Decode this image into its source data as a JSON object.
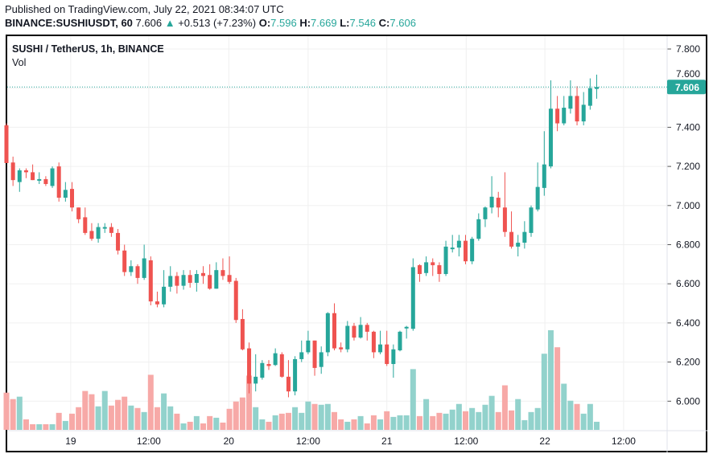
{
  "header": {
    "published": "Published on TradingView.com, July 22, 2021 08:34:07 UTC",
    "symbol": "BINANCE:SUSHIUSDT, 60",
    "last": "7.606",
    "change": "+0.513 (+7.23%)",
    "o_label": "O:",
    "o": "7.596",
    "h_label": "H:",
    "h": "7.669",
    "l_label": "L:",
    "l": "7.546",
    "c_label": "C:",
    "c": "7.606"
  },
  "legend": {
    "title": "SUSHI / TetherUS, 1h, BINANCE",
    "vol": "Vol"
  },
  "colors": {
    "up": "#26a69a",
    "down": "#ef5350",
    "up_vol": "#92d2cc",
    "down_vol": "#f7a9a7",
    "grid": "#f0f0f0"
  },
  "chart_data": {
    "type": "candlestick",
    "title": "SUSHI / TetherUS, 1h, BINANCE",
    "ylim": [
      5.85,
      7.87
    ],
    "y_ticks": [
      "7.800",
      "7.600",
      "7.400",
      "7.200",
      "7.000",
      "6.800",
      "6.600",
      "6.400",
      "6.200",
      "6.000"
    ],
    "y_tick_values": [
      7.8,
      7.6,
      7.4,
      7.2,
      7.0,
      6.8,
      6.6,
      6.4,
      6.2,
      6.0
    ],
    "x_ticks": [
      "19",
      "12:00",
      "20",
      "12:00",
      "21",
      "12:00",
      "22",
      "12:00"
    ],
    "x_tick_candle_index": [
      9.8,
      21.7,
      33.9,
      46.0,
      58.0,
      70.1,
      82.1,
      94.1
    ],
    "last_price_label": "7.606",
    "last_price": 7.606,
    "ohlc": [
      [
        7.41,
        7.42,
        7.22,
        7.217
      ],
      [
        7.22,
        7.25,
        7.1,
        7.13
      ],
      [
        7.12,
        7.19,
        7.07,
        7.18
      ],
      [
        7.18,
        7.19,
        7.14,
        7.17
      ],
      [
        7.17,
        7.21,
        7.13,
        7.13
      ],
      [
        7.135,
        7.17,
        7.11,
        7.135
      ],
      [
        7.135,
        7.15,
        7.1,
        7.11
      ],
      [
        7.1,
        7.2,
        7.09,
        7.19
      ],
      [
        7.2,
        7.22,
        7.02,
        7.04
      ],
      [
        7.04,
        7.12,
        7.02,
        7.08
      ],
      [
        7.085,
        7.12,
        6.97,
        6.99
      ],
      [
        6.99,
        6.99,
        6.91,
        6.93
      ],
      [
        6.94,
        6.99,
        6.85,
        6.86
      ],
      [
        6.87,
        6.91,
        6.82,
        6.83
      ],
      [
        6.83,
        6.91,
        6.81,
        6.89
      ],
      [
        6.885,
        6.91,
        6.86,
        6.89
      ],
      [
        6.89,
        6.91,
        6.84,
        6.86
      ],
      [
        6.86,
        6.88,
        6.75,
        6.77
      ],
      [
        6.77,
        6.8,
        6.64,
        6.66
      ],
      [
        6.66,
        6.72,
        6.64,
        6.69
      ],
      [
        6.69,
        6.7,
        6.6,
        6.63
      ],
      [
        6.63,
        6.8,
        6.62,
        6.73
      ],
      [
        6.72,
        6.74,
        6.49,
        6.51
      ],
      [
        6.51,
        6.56,
        6.48,
        6.495
      ],
      [
        6.495,
        6.67,
        6.48,
        6.585
      ],
      [
        6.585,
        6.69,
        6.56,
        6.64
      ],
      [
        6.64,
        6.66,
        6.55,
        6.59
      ],
      [
        6.59,
        6.67,
        6.57,
        6.645
      ],
      [
        6.645,
        6.67,
        6.58,
        6.605
      ],
      [
        6.605,
        6.67,
        6.56,
        6.65
      ],
      [
        6.655,
        6.69,
        6.6,
        6.64
      ],
      [
        6.645,
        6.7,
        6.57,
        6.575
      ],
      [
        6.575,
        6.71,
        6.575,
        6.67
      ],
      [
        6.67,
        6.73,
        6.62,
        6.64
      ],
      [
        6.645,
        6.74,
        6.6,
        6.61
      ],
      [
        6.615,
        6.63,
        6.4,
        6.415
      ],
      [
        6.42,
        6.47,
        6.26,
        6.265
      ],
      [
        6.27,
        6.3,
        6.04,
        6.09
      ],
      [
        6.09,
        6.24,
        6.05,
        6.125
      ],
      [
        6.12,
        6.21,
        6.11,
        6.195
      ],
      [
        6.19,
        6.21,
        6.16,
        6.18
      ],
      [
        6.185,
        6.27,
        6.18,
        6.245
      ],
      [
        6.24,
        6.25,
        6.12,
        6.125
      ],
      [
        6.125,
        6.21,
        6.02,
        6.05
      ],
      [
        6.05,
        6.23,
        6.03,
        6.215
      ],
      [
        6.215,
        6.31,
        6.2,
        6.25
      ],
      [
        6.25,
        6.36,
        6.24,
        6.31
      ],
      [
        6.31,
        6.31,
        6.13,
        6.17
      ],
      [
        6.175,
        6.28,
        6.14,
        6.25
      ],
      [
        6.25,
        6.455,
        6.23,
        6.45
      ],
      [
        6.45,
        6.5,
        6.26,
        6.27
      ],
      [
        6.275,
        6.3,
        6.25,
        6.265
      ],
      [
        6.265,
        6.41,
        6.25,
        6.385
      ],
      [
        6.385,
        6.4,
        6.31,
        6.325
      ],
      [
        6.325,
        6.43,
        6.32,
        6.39
      ],
      [
        6.39,
        6.4,
        6.31,
        6.355
      ],
      [
        6.355,
        6.36,
        6.22,
        6.25
      ],
      [
        6.25,
        6.36,
        6.24,
        6.29
      ],
      [
        6.29,
        6.36,
        6.18,
        6.19
      ],
      [
        6.19,
        6.29,
        6.12,
        6.265
      ],
      [
        6.26,
        6.36,
        6.255,
        6.355
      ],
      [
        6.375,
        6.385,
        6.32,
        6.38
      ],
      [
        6.37,
        6.73,
        6.36,
        6.685
      ],
      [
        6.695,
        6.7,
        6.61,
        6.65
      ],
      [
        6.655,
        6.74,
        6.64,
        6.71
      ],
      [
        6.71,
        6.73,
        6.64,
        6.695
      ],
      [
        6.695,
        6.71,
        6.61,
        6.65
      ],
      [
        6.65,
        6.82,
        6.64,
        6.79
      ],
      [
        6.785,
        6.85,
        6.76,
        6.785
      ],
      [
        6.785,
        6.85,
        6.74,
        6.82
      ],
      [
        6.82,
        6.85,
        6.7,
        6.715
      ],
      [
        6.715,
        6.84,
        6.7,
        6.83
      ],
      [
        6.83,
        6.96,
        6.82,
        6.93
      ],
      [
        6.93,
        6.995,
        6.89,
        6.99
      ],
      [
        6.99,
        7.15,
        6.96,
        7.045
      ],
      [
        7.04,
        7.07,
        6.94,
        6.99
      ],
      [
        6.99,
        7.17,
        6.84,
        6.865
      ],
      [
        6.865,
        6.97,
        6.78,
        6.79
      ],
      [
        6.79,
        6.85,
        6.74,
        6.81
      ],
      [
        6.81,
        6.92,
        6.78,
        6.865
      ],
      [
        6.86,
        7.0,
        6.84,
        6.99
      ],
      [
        6.98,
        7.22,
        6.97,
        7.095
      ],
      [
        7.09,
        7.38,
        7.05,
        7.21
      ],
      [
        7.2,
        7.64,
        7.19,
        7.495
      ],
      [
        7.495,
        7.56,
        7.38,
        7.42
      ],
      [
        7.42,
        7.56,
        7.41,
        7.5
      ],
      [
        7.495,
        7.64,
        7.47,
        7.56
      ],
      [
        7.56,
        7.61,
        7.41,
        7.43
      ],
      [
        7.43,
        7.58,
        7.41,
        7.515
      ],
      [
        7.51,
        7.65,
        7.49,
        7.6
      ],
      [
        7.596,
        7.669,
        7.546,
        7.606
      ]
    ],
    "volume": [
      46,
      38,
      41,
      13,
      7,
      7,
      7,
      7,
      21,
      11,
      20,
      28,
      48,
      44,
      29,
      48,
      30,
      37,
      41,
      30,
      27,
      22,
      68,
      28,
      45,
      29,
      20,
      8,
      10,
      17,
      8,
      17,
      15,
      9,
      26,
      35,
      40,
      67,
      28,
      13,
      10,
      18,
      20,
      21,
      28,
      21,
      35,
      32,
      31,
      32,
      22,
      13,
      10,
      13,
      17,
      8,
      18,
      13,
      23,
      16,
      18,
      18,
      75,
      17,
      38,
      17,
      21,
      20,
      25,
      32,
      23,
      27,
      22,
      31,
      42,
      22,
      55,
      24,
      38,
      12,
      22,
      27,
      94,
      123,
      102,
      57,
      36,
      32,
      20,
      32,
      10
    ]
  }
}
